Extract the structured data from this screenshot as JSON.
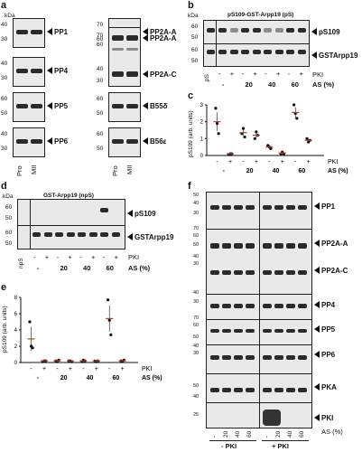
{
  "panel_a": {
    "letter": "a",
    "unit": "kDa",
    "blots": [
      {
        "label": "PP1",
        "mw": [
          "40",
          "30"
        ]
      },
      {
        "label": "PP4",
        "mw": [
          "40",
          "30"
        ]
      },
      {
        "label": "PP5",
        "mw": [
          "60",
          "50"
        ]
      },
      {
        "label": "PP6",
        "mw": [
          "40",
          "30"
        ]
      },
      {
        "label": "PP2A-A",
        "mw": [
          "70",
          "60"
        ]
      },
      {
        "label": "PP2A-C",
        "mw": [
          "40",
          "30"
        ]
      },
      {
        "label": "B55δ",
        "mw": [
          "60",
          "50"
        ]
      },
      {
        "label": "B56ε",
        "mw": [
          "60",
          "50"
        ]
      }
    ],
    "lanes": [
      "Pro",
      "MII"
    ]
  },
  "panel_b": {
    "letter": "b",
    "unit": "kDa",
    "title": "pS109-GST-Arpp19 (pS)",
    "lane0": "pS",
    "labels": [
      "pS109",
      "GSTArpp19"
    ],
    "mw": [
      "60",
      "50",
      "60",
      "50"
    ],
    "pki_label": "PKI",
    "signs": [
      "-",
      "+",
      "-",
      "+",
      "-",
      "+",
      "-",
      "+"
    ],
    "as": [
      "-",
      "20",
      "40",
      "60"
    ],
    "as_label": "AS (%)"
  },
  "panel_c": {
    "letter": "c",
    "ylabel": "pS109 (arb. units)",
    "yticks": [
      "0",
      "1",
      "2",
      "3"
    ],
    "pki_label": "PKI",
    "as_label": "AS (%)",
    "signs": [
      "-",
      "+",
      "-",
      "+",
      "-",
      "+",
      "-",
      "+"
    ],
    "as": [
      "-",
      "20",
      "40",
      "60"
    ]
  },
  "panel_d": {
    "letter": "d",
    "unit": "kDa",
    "title": "GST-Arpp19 (npS)",
    "lane0": "npS",
    "labels": [
      "pS109",
      "GSTArpp19"
    ],
    "mw": [
      "60",
      "50",
      "60",
      "50"
    ],
    "pki_label": "PKI",
    "signs": [
      "-",
      "+",
      "-",
      "+",
      "-",
      "+",
      "-",
      "+"
    ],
    "as": [
      "-",
      "20",
      "40",
      "60"
    ],
    "as_label": "AS (%)"
  },
  "panel_e": {
    "letter": "e",
    "ylabel": "pS109 (arb. units)",
    "yticks": [
      "0",
      "2",
      "4",
      "6",
      "8"
    ],
    "pki_label": "PKI",
    "as_label": "AS (%)",
    "signs": [
      "-",
      "+",
      "-",
      "+",
      "-",
      "+",
      "-",
      "+"
    ],
    "as": [
      "-",
      "20",
      "40",
      "60"
    ]
  },
  "panel_f": {
    "letter": "f",
    "labels": [
      "PP1",
      "PP2A-A",
      "PP2A-C",
      "PP4",
      "PP5",
      "PP6",
      "PKA",
      "PKI"
    ],
    "mw": [
      "50",
      "40",
      "30",
      "70",
      "60",
      "50",
      "40",
      "30",
      "40",
      "30",
      "70",
      "60",
      "50",
      "40",
      "30",
      "50",
      "40",
      "25"
    ],
    "lanes": [
      "-",
      "20",
      "40",
      "60",
      "-",
      "20",
      "40",
      "60"
    ],
    "as_label": "AS (%)",
    "groups": [
      "- PKI",
      "+ PKI"
    ]
  },
  "chart_data": [
    {
      "type": "scatter",
      "panel": "c",
      "categories": [
        "- / -",
        "- / +",
        "20 / -",
        "20 / +",
        "40 / -",
        "40 / +",
        "60 / -",
        "60 / +"
      ],
      "ylabel": "pS109 (arb. units)",
      "ylim": [
        0,
        3
      ],
      "means": [
        2.0,
        0.1,
        1.35,
        1.2,
        0.5,
        0.15,
        2.55,
        0.9
      ],
      "points": [
        [
          2.8,
          1.9,
          1.3
        ],
        [
          0.05,
          0.1,
          0.1
        ],
        [
          1.3,
          1.6,
          1.1
        ],
        [
          1.0,
          1.4,
          1.2
        ],
        [
          0.6,
          0.5,
          0.4
        ],
        [
          0.1,
          0.2,
          0.1
        ],
        [
          3.0,
          2.5,
          2.2
        ],
        [
          1.0,
          0.8,
          0.9
        ]
      ]
    },
    {
      "type": "scatter",
      "panel": "e",
      "categories": [
        "- / -",
        "- / +",
        "20 / -",
        "20 / +",
        "40 / -",
        "40 / +",
        "60 / -",
        "60 / +"
      ],
      "ylabel": "pS109 (arb. units)",
      "ylim": [
        0,
        8
      ],
      "means": [
        2.9,
        0.2,
        0.2,
        0.2,
        0.2,
        0.2,
        5.4,
        0.2
      ],
      "points": [
        [
          5.0,
          2.0,
          1.8
        ],
        [
          0.1,
          0.2,
          0.2
        ],
        [
          0.2,
          0.1,
          0.3
        ],
        [
          0.2,
          0.2,
          0.1
        ],
        [
          0.1,
          0.3,
          0.2
        ],
        [
          0.2,
          0.1,
          0.2
        ],
        [
          7.7,
          5.2,
          3.4
        ],
        [
          0.2,
          0.1,
          0.3
        ]
      ]
    }
  ]
}
